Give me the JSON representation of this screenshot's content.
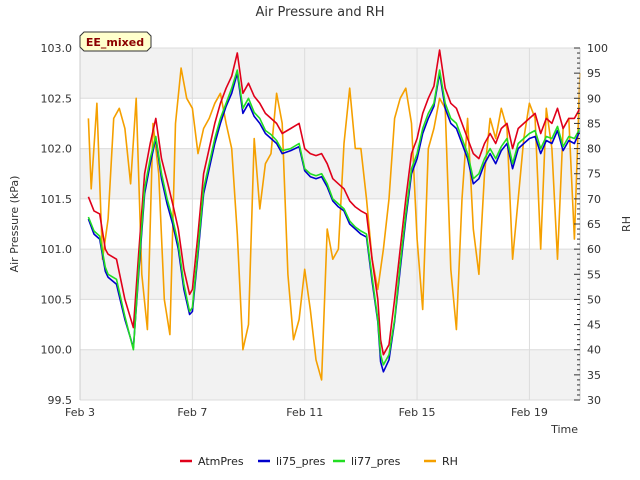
{
  "chart_data": {
    "type": "line",
    "title": "Air Pressure and RH",
    "badge": "EE_mixed",
    "xlabel": "Time",
    "ylabel_left": "Air Pressure (kPa)",
    "ylabel_right": "RH",
    "x_ticks": [
      "Feb 3",
      "Feb 7",
      "Feb 11",
      "Feb 15",
      "Feb 19"
    ],
    "x_tick_days": [
      3,
      7,
      11,
      15,
      19
    ],
    "xlim": [
      3,
      20.8
    ],
    "ylim_left": [
      99.5,
      103.0
    ],
    "ylim_right": [
      30,
      100
    ],
    "y_ticks_left": [
      "99.5",
      "100.0",
      "100.5",
      "101.0",
      "101.5",
      "102.0",
      "102.5",
      "103.0"
    ],
    "y_ticks_right": [
      "30",
      "35",
      "40",
      "45",
      "50",
      "55",
      "60",
      "65",
      "70",
      "75",
      "80",
      "85",
      "90",
      "95",
      "100"
    ],
    "grid": true,
    "bands": [
      [
        99.5,
        100.0
      ],
      [
        100.5,
        101.0
      ],
      [
        101.5,
        102.0
      ],
      [
        102.5,
        103.0
      ]
    ],
    "legend_position": "bottom",
    "colors": {
      "AtmPres": "#e0001a",
      "li75_pres": "#0000cc",
      "li77_pres": "#22dd22",
      "RH": "#f5a000",
      "band": "#f2f2f2",
      "grid": "#dcdcdc",
      "badge_fill": "#ffffcc"
    },
    "series": [
      {
        "name": "AtmPres",
        "axis": "left",
        "x": [
          3.3,
          3.5,
          3.7,
          3.9,
          4.0,
          4.3,
          4.6,
          4.9,
          5.1,
          5.3,
          5.5,
          5.7,
          5.9,
          6.1,
          6.3,
          6.5,
          6.7,
          6.9,
          7.0,
          7.2,
          7.4,
          7.6,
          7.8,
          8.0,
          8.2,
          8.4,
          8.6,
          8.8,
          9.0,
          9.2,
          9.4,
          9.6,
          9.8,
          10.0,
          10.2,
          10.5,
          10.8,
          11.0,
          11.2,
          11.4,
          11.6,
          11.8,
          12.0,
          12.2,
          12.4,
          12.6,
          12.8,
          13.0,
          13.2,
          13.4,
          13.6,
          13.7,
          13.8,
          14.0,
          14.2,
          14.4,
          14.6,
          14.8,
          15.0,
          15.2,
          15.4,
          15.6,
          15.8,
          16.0,
          16.2,
          16.4,
          16.6,
          16.8,
          17.0,
          17.2,
          17.4,
          17.6,
          17.8,
          18.0,
          18.2,
          18.4,
          18.6,
          18.8,
          19.0,
          19.2,
          19.4,
          19.6,
          19.8,
          20.0,
          20.2,
          20.4,
          20.6,
          20.8
        ],
        "values": [
          101.52,
          101.38,
          101.35,
          101.0,
          100.95,
          100.9,
          100.5,
          100.22,
          101.0,
          101.75,
          102.05,
          102.3,
          101.9,
          101.68,
          101.45,
          101.2,
          100.8,
          100.55,
          100.6,
          101.15,
          101.75,
          102.0,
          102.25,
          102.45,
          102.6,
          102.72,
          102.95,
          102.55,
          102.65,
          102.52,
          102.45,
          102.35,
          102.3,
          102.25,
          102.15,
          102.2,
          102.25,
          102.0,
          101.95,
          101.93,
          101.95,
          101.85,
          101.7,
          101.65,
          101.6,
          101.48,
          101.42,
          101.38,
          101.35,
          100.9,
          100.5,
          100.1,
          99.95,
          100.05,
          100.5,
          101.0,
          101.5,
          101.95,
          102.1,
          102.35,
          102.5,
          102.62,
          102.98,
          102.6,
          102.45,
          102.4,
          102.25,
          102.1,
          101.95,
          101.9,
          102.05,
          102.15,
          102.05,
          102.2,
          102.25,
          102.0,
          102.2,
          102.25,
          102.3,
          102.35,
          102.15,
          102.3,
          102.25,
          102.4,
          102.2,
          102.3,
          102.3,
          102.4
        ]
      },
      {
        "name": "li75_pres",
        "axis": "left",
        "x": [
          3.3,
          3.5,
          3.7,
          3.9,
          4.0,
          4.3,
          4.6,
          4.9,
          5.1,
          5.3,
          5.5,
          5.7,
          5.9,
          6.1,
          6.3,
          6.5,
          6.7,
          6.9,
          7.0,
          7.2,
          7.4,
          7.6,
          7.8,
          8.0,
          8.2,
          8.4,
          8.6,
          8.8,
          9.0,
          9.2,
          9.4,
          9.6,
          9.8,
          10.0,
          10.2,
          10.5,
          10.8,
          11.0,
          11.2,
          11.4,
          11.6,
          11.8,
          12.0,
          12.2,
          12.4,
          12.6,
          12.8,
          13.0,
          13.2,
          13.4,
          13.6,
          13.7,
          13.8,
          14.0,
          14.2,
          14.4,
          14.6,
          14.8,
          15.0,
          15.2,
          15.4,
          15.6,
          15.8,
          16.0,
          16.2,
          16.4,
          16.6,
          16.8,
          17.0,
          17.2,
          17.4,
          17.6,
          17.8,
          18.0,
          18.2,
          18.4,
          18.6,
          18.8,
          19.0,
          19.2,
          19.4,
          19.6,
          19.8,
          20.0,
          20.2,
          20.4,
          20.6,
          20.8
        ],
        "values": [
          101.3,
          101.15,
          101.1,
          100.78,
          100.72,
          100.65,
          100.3,
          100.02,
          100.8,
          101.55,
          101.85,
          102.1,
          101.7,
          101.45,
          101.25,
          101.0,
          100.6,
          100.35,
          100.38,
          100.95,
          101.55,
          101.8,
          102.05,
          102.25,
          102.42,
          102.55,
          102.75,
          102.35,
          102.45,
          102.32,
          102.25,
          102.15,
          102.1,
          102.05,
          101.95,
          101.98,
          102.02,
          101.78,
          101.72,
          101.7,
          101.72,
          101.62,
          101.48,
          101.42,
          101.38,
          101.25,
          101.2,
          101.15,
          101.12,
          100.68,
          100.28,
          99.88,
          99.78,
          99.9,
          100.28,
          100.8,
          101.3,
          101.75,
          101.9,
          102.15,
          102.3,
          102.42,
          102.75,
          102.4,
          102.25,
          102.2,
          102.05,
          101.9,
          101.65,
          101.7,
          101.85,
          101.95,
          101.85,
          101.98,
          102.05,
          101.8,
          102.0,
          102.05,
          102.1,
          102.12,
          101.95,
          102.08,
          102.05,
          102.18,
          101.98,
          102.08,
          102.05,
          102.18
        ]
      },
      {
        "name": "li77_pres",
        "axis": "left",
        "x": [
          3.3,
          3.5,
          3.7,
          3.9,
          4.0,
          4.3,
          4.6,
          4.9,
          5.1,
          5.3,
          5.5,
          5.7,
          5.9,
          6.1,
          6.3,
          6.5,
          6.7,
          6.9,
          7.0,
          7.2,
          7.4,
          7.6,
          7.8,
          8.0,
          8.2,
          8.4,
          8.6,
          8.8,
          9.0,
          9.2,
          9.4,
          9.6,
          9.8,
          10.0,
          10.2,
          10.5,
          10.8,
          11.0,
          11.2,
          11.4,
          11.6,
          11.8,
          12.0,
          12.2,
          12.4,
          12.6,
          12.8,
          13.0,
          13.2,
          13.4,
          13.6,
          13.7,
          13.8,
          14.0,
          14.2,
          14.4,
          14.6,
          14.8,
          15.0,
          15.2,
          15.4,
          15.6,
          15.8,
          16.0,
          16.2,
          16.4,
          16.6,
          16.8,
          17.0,
          17.2,
          17.4,
          17.6,
          17.8,
          18.0,
          18.2,
          18.4,
          18.6,
          18.8,
          19.0,
          19.2,
          19.4,
          19.6,
          19.8,
          20.0,
          20.2,
          20.4,
          20.6,
          20.8
        ],
        "values": [
          101.32,
          101.18,
          101.13,
          100.82,
          100.75,
          100.7,
          100.33,
          100.0,
          100.85,
          101.6,
          101.9,
          102.12,
          101.75,
          101.5,
          101.3,
          101.05,
          100.65,
          100.38,
          100.42,
          101.0,
          101.6,
          101.85,
          102.1,
          102.3,
          102.45,
          102.6,
          102.78,
          102.4,
          102.5,
          102.36,
          102.3,
          102.18,
          102.14,
          102.08,
          101.98,
          102.0,
          102.05,
          101.8,
          101.75,
          101.73,
          101.75,
          101.65,
          101.5,
          101.45,
          101.4,
          101.28,
          101.22,
          101.18,
          101.15,
          100.72,
          100.3,
          99.95,
          99.85,
          99.95,
          100.3,
          100.85,
          101.35,
          101.8,
          101.95,
          102.2,
          102.35,
          102.45,
          102.78,
          102.45,
          102.3,
          102.25,
          102.1,
          101.95,
          101.7,
          101.75,
          101.9,
          102.0,
          101.9,
          102.02,
          102.1,
          101.85,
          102.05,
          102.1,
          102.15,
          102.18,
          102.0,
          102.12,
          102.1,
          102.22,
          102.02,
          102.12,
          102.1,
          102.2
        ]
      },
      {
        "name": "RH",
        "axis": "right",
        "x": [
          3.3,
          3.4,
          3.6,
          3.8,
          4.0,
          4.2,
          4.4,
          4.6,
          4.8,
          5.0,
          5.2,
          5.4,
          5.6,
          5.8,
          6.0,
          6.2,
          6.4,
          6.6,
          6.8,
          7.0,
          7.2,
          7.4,
          7.6,
          7.8,
          8.0,
          8.2,
          8.4,
          8.6,
          8.8,
          9.0,
          9.2,
          9.4,
          9.6,
          9.8,
          10.0,
          10.2,
          10.4,
          10.6,
          10.8,
          11.0,
          11.2,
          11.4,
          11.6,
          11.8,
          12.0,
          12.2,
          12.4,
          12.6,
          12.8,
          13.0,
          13.2,
          13.4,
          13.6,
          13.8,
          14.0,
          14.2,
          14.4,
          14.6,
          14.8,
          15.0,
          15.2,
          15.4,
          15.6,
          15.8,
          16.0,
          16.2,
          16.4,
          16.6,
          16.8,
          17.0,
          17.2,
          17.4,
          17.6,
          17.8,
          18.0,
          18.2,
          18.4,
          18.6,
          18.8,
          19.0,
          19.2,
          19.4,
          19.6,
          19.8,
          20.0,
          20.2,
          20.4,
          20.6,
          20.8
        ],
        "values": [
          86,
          72,
          89,
          58,
          66,
          86,
          88,
          84,
          73,
          90,
          55,
          44,
          85,
          75,
          50,
          43,
          85,
          96,
          90,
          88,
          79,
          84,
          86,
          89,
          91,
          85,
          80,
          63,
          40,
          45,
          82,
          68,
          77,
          79,
          91,
          85,
          55,
          42,
          46,
          56,
          48,
          38,
          34,
          64,
          58,
          60,
          81,
          92,
          80,
          80,
          70,
          58,
          52,
          60,
          70,
          86,
          90,
          92,
          85,
          62,
          48,
          80,
          84,
          90,
          88,
          56,
          44,
          70,
          86,
          64,
          55,
          75,
          86,
          82,
          88,
          84,
          58,
          70,
          82,
          89,
          86,
          60,
          88,
          80,
          58,
          84,
          86,
          62,
          95
        ]
      }
    ]
  }
}
